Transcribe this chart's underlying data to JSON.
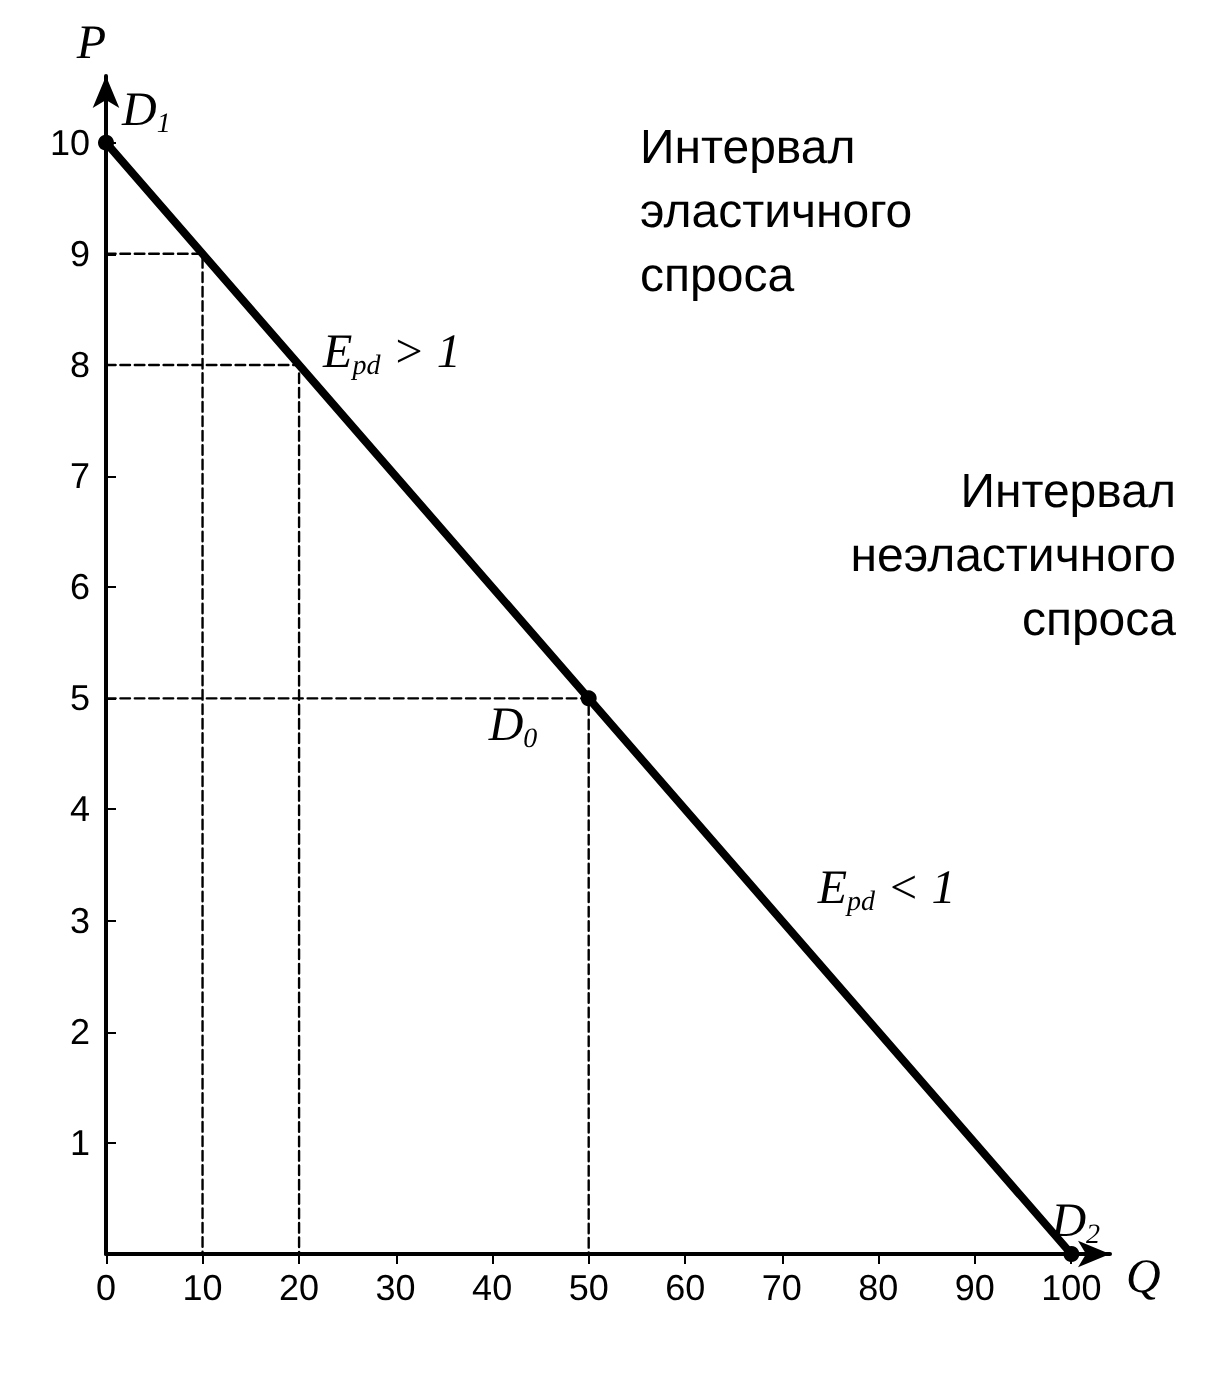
{
  "chart_data": {
    "type": "line",
    "xlabel": "Q",
    "ylabel": "P",
    "xlim": [
      0,
      104
    ],
    "ylim": [
      0,
      10.6
    ],
    "xticks": [
      0,
      10,
      20,
      30,
      40,
      50,
      60,
      70,
      80,
      90,
      100
    ],
    "yticks": [
      1,
      2,
      3,
      4,
      5,
      6,
      7,
      8,
      9,
      10
    ],
    "grid": false,
    "series": [
      {
        "color": "#000000",
        "x": [
          0,
          50,
          100
        ],
        "values": [
          10,
          5,
          0
        ],
        "marker": "circle",
        "line_style": "solid"
      },
      {
        "color": "#000000",
        "x": [
          0,
          10,
          10
        ],
        "values": [
          9,
          9,
          0
        ],
        "marker": "none",
        "line_style": "dashed"
      },
      {
        "color": "#000000",
        "x": [
          0,
          20,
          20
        ],
        "values": [
          8,
          8,
          0
        ],
        "marker": "none",
        "line_style": "dashed"
      },
      {
        "color": "#000000",
        "x": [
          0,
          50,
          50
        ],
        "values": [
          5,
          5,
          0
        ],
        "marker": "none",
        "line_style": "dashed"
      }
    ],
    "annotations": [
      {
        "text": "D$_{1}$",
        "x": 0,
        "y": 10
      },
      {
        "text": "E$_{pd}$ > 1",
        "x": 20,
        "y": 8
      },
      {
        "text": "D$_{0}$",
        "x": 50,
        "y": 5
      },
      {
        "text": "E$_{pd}$ < 1",
        "x": 70,
        "y": 3
      },
      {
        "text": "D$_{2}$",
        "x": 100,
        "y": 0
      },
      "Интервал\nэластичного\nспроса",
      "Интервал\nнеэластичного\nспроса"
    ]
  }
}
